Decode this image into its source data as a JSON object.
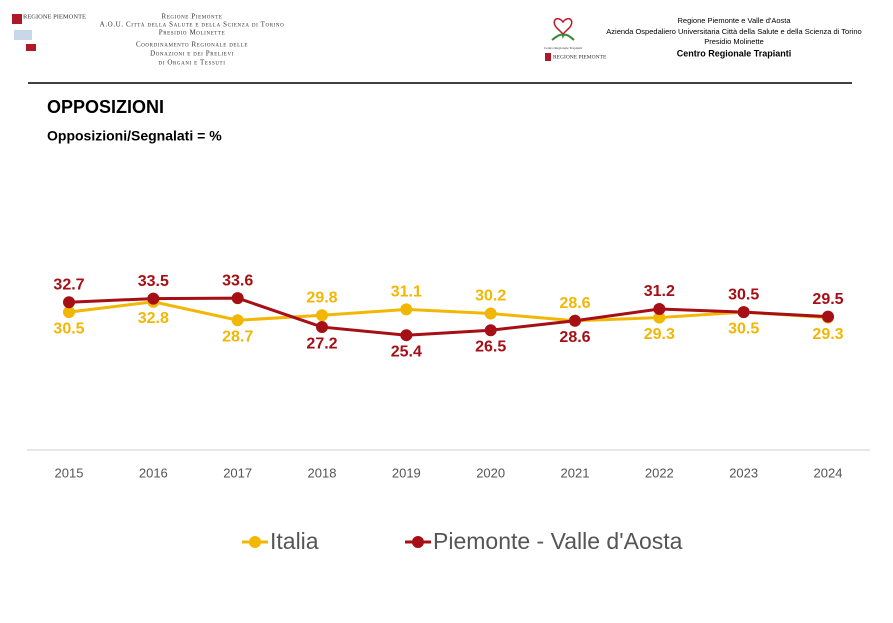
{
  "header": {
    "left_logo": "REGIONE PIEMONTE",
    "left_lines": [
      "Regione Piemonte",
      "A.O.U. Città della Salute e della Scienza di Torino",
      "Presidio Molinette",
      "Coordinamento Regionale delle",
      "Donazioni e dei Prelievi",
      "di Organi e Tessuti"
    ],
    "right_logo_caption": "Centro Regionale Trapianti",
    "right_logo": "REGIONE PIEMONTE",
    "right_lines": [
      "Regione Piemonte e Valle d'Aosta",
      "Azienda Ospedaliero Universitaria Città della Salute e della Scienza di Torino",
      "Presidio Molinette",
      "Centro Regionale Trapianti"
    ]
  },
  "chart_data": {
    "type": "line",
    "title": "OPPOSIZIONI",
    "subtitle": "Opposizioni/Segnalati = %",
    "categories": [
      "2015",
      "2016",
      "2017",
      "2018",
      "2019",
      "2020",
      "2021",
      "2022",
      "2023",
      "2024"
    ],
    "ylim": [
      0,
      60
    ],
    "series": [
      {
        "name": "Italia",
        "color": "#f2b705",
        "values": [
          30.5,
          32.8,
          28.7,
          29.8,
          31.1,
          30.2,
          28.6,
          29.3,
          30.5,
          29.3
        ]
      },
      {
        "name": "Piemonte - Valle d'Aosta",
        "color": "#a50f15",
        "values": [
          32.7,
          33.5,
          33.6,
          27.2,
          25.4,
          26.5,
          28.6,
          31.2,
          30.5,
          29.5
        ]
      }
    ],
    "legend": "bottom"
  }
}
